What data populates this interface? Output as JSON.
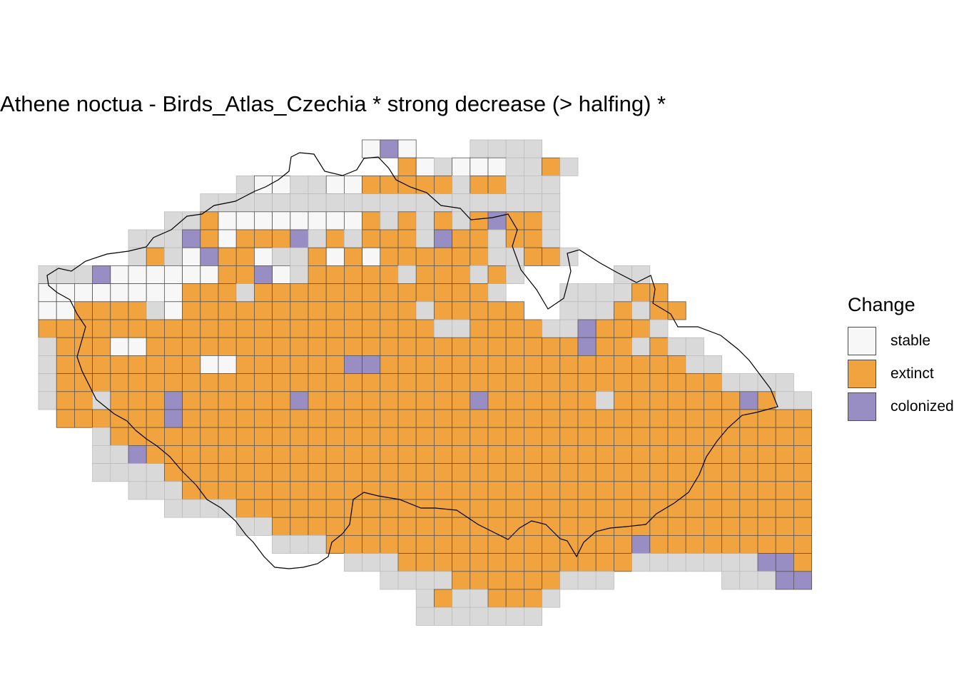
{
  "title": "Athene noctua - Birds_Atlas_Czechia * strong decrease (> halfing) *",
  "legend": {
    "title": "Change",
    "items": [
      {
        "label": "stable",
        "color": "#F7F7F7"
      },
      {
        "label": "extinct",
        "color": "#F1A340"
      },
      {
        "label": "colonized",
        "color": "#998EC3"
      }
    ],
    "absent_color": "#D9D9D9"
  },
  "map": {
    "grid_rows": [
      "..............ATA...OOOO...................",
      "................EAOAAAOOEO................",
      "...........OAAOOAAEEEEEOEEOOO.............",
      "..........OOOOOOOOOOOOOOOOOOOO............",
      ".........OOESASSSASSEOEOEOECEEO...........",
      "........OOOCEAEEECOEOEEEOCEEOEEO..........",
      "........OEOACEEAOOEAEAEEEEEEOOEEO.........",
      ".....OOOOCSSSSSSEECAOEEEEEOEEEOEO.....OO...",
      "..OOOOEEOSSSSSSSSEEEOEEEEEEEEEEEEEO...OOOOEE.",
      "...OCOAESSEEEEOSEEEEEEEEEEEEEOEEEEE..OOOEOEE.",
      "...OEOSOEEEEEEEEEEEEEEEEEEEEEEOOEEEEOOCEEEO..",
      "....OEOOEEESSEEEEEEEEEEEEEEEEEEEEEEEECEEOEOO..",
      ".....EOEEEEEEEESSEEEEEECCEEEEEEEEEEEEEEEEEOO....",
      ".....OOEEEEEEEEEEEEEEEEEEEEEEEEEEEEEEEEEEEEEOOOO..",
      ".....OOEEOEEECEEEEEECEEEEEEEEECEEEEEEOEEEEEEECEOO..",
      "......EEEEEECEEEEEEEEEEEEEEEEEEEEEEEEEEEEEEEEEEEEO.",
      ".......OEEEEEEEEEEEEEEEEEEEEEEEEEEEEEEEEEEEEEEEEEEEOO",
      ".......OOCEEEEEEEEEEEEEEEEEEEEEEEEEEEEEEEEEEEEEEECEEOO",
      ".......OOOOEEEEEEEEEEEEEEEEEEEEEEEEEEEEEEEEEEEEEEEEO...",
      "........OOOEEEEEEEEEEEEEEEEEEEEEEEEEEEEEEEEEEEEEEE....",
      ".........OOOOEEEEEEEEEEEEEEEEEEEEEEEEEEEEEEEEEEEEC....",
      "...........OOEEEEEEEEEEEEEEEEEEEEEEEEEEEEEEEEEEEE....",
      "............OOOEEEEEEEEEEEEEEEEECEEEEEEEEEEEEEEE.....",
      "..............OOOEEEEEEEEEEEEEOOOOOOOCCEEEEEEE.......",
      "...............OOOOEEEEEEOOO......OOOCCOOOOE.........",
      "................OEOOEEEO................OOO..........",
      "................OOOOOOO.............................."
    ],
    "grid_legend": {
      "S": "stable",
      "E": "extinct",
      "C": "colonized",
      "O": "no data",
      "A": "stable",
      "T": "colonized"
    }
  }
}
